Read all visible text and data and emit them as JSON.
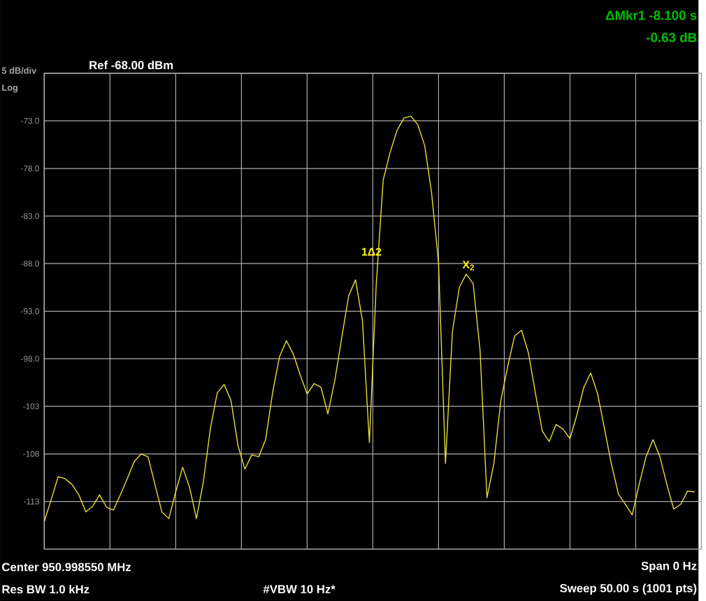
{
  "chart_data": {
    "type": "line",
    "categories": [
      null,
      null,
      null,
      null,
      null,
      null,
      null,
      null,
      null,
      null,
      null,
      null,
      null,
      null,
      null,
      null,
      null,
      null,
      null,
      null,
      null,
      null,
      null,
      null,
      null,
      null,
      null,
      null,
      null,
      null,
      null,
      null,
      null,
      null,
      null,
      null,
      null,
      null,
      null,
      null,
      null,
      null,
      null,
      null,
      null,
      null,
      null,
      null,
      null,
      null,
      null,
      null,
      null,
      null,
      null,
      null,
      null,
      null,
      null,
      null,
      null,
      null,
      null,
      null,
      null,
      null,
      null,
      null,
      null,
      null,
      null,
      null,
      null,
      null,
      null,
      null,
      null,
      null,
      null,
      null,
      null,
      null,
      null,
      null,
      null,
      null,
      null,
      null,
      null,
      null,
      null,
      null,
      null,
      null,
      null
    ],
    "series": [
      {
        "color": "#e8e03a",
        "values": [
          -115.1,
          -112.8,
          -110.4,
          -110.6,
          -111.2,
          -112.3,
          -114.1,
          -113.5,
          -112.3,
          -113.6,
          -113.9,
          -112.3,
          -110.6,
          -108.8,
          -108.0,
          -108.3,
          -111.2,
          -114.1,
          -114.8,
          -112.0,
          -109.4,
          -111.5,
          -114.8,
          -110.9,
          -105.4,
          -101.6,
          -100.7,
          -102.4,
          -107.1,
          -109.6,
          -108.1,
          -108.3,
          -106.5,
          -101.6,
          -97.8,
          -96.1,
          -97.5,
          -99.7,
          -101.7,
          -100.6,
          -101.0,
          -103.8,
          -100.3,
          -95.8,
          -91.4,
          -89.7,
          -94.0,
          -106.8,
          -90.1,
          -79.2,
          -76.3,
          -74.0,
          -72.7,
          -72.5,
          -73.4,
          -75.6,
          -80.6,
          -87.9,
          -109.0,
          -95.2,
          -90.5,
          -89.1,
          -90.1,
          -97.1,
          -112.6,
          -109.0,
          -102.4,
          -98.8,
          -95.6,
          -95.0,
          -97.4,
          -101.6,
          -105.6,
          -106.7,
          -104.9,
          -105.4,
          -106.4,
          -103.9,
          -101.0,
          -99.5,
          -101.7,
          -105.4,
          -109.1,
          -112.2,
          -113.3,
          -114.4,
          -111.2,
          -108.3,
          -106.5,
          -108.3,
          -111.2,
          -113.8,
          -113.3,
          -111.9,
          -112.0
        ]
      }
    ],
    "ylim": [
      -118,
      -68
    ],
    "yticks": [
      {
        "value": -73,
        "label": "-73.0"
      },
      {
        "value": -78,
        "label": "-78.0"
      },
      {
        "value": -83,
        "label": "-83.0"
      },
      {
        "value": -88,
        "label": "-88.0"
      },
      {
        "value": -93,
        "label": "-93.0"
      },
      {
        "value": -98,
        "label": "-98.0"
      },
      {
        "value": -103,
        "label": "-103"
      },
      {
        "value": -108,
        "label": "-108"
      },
      {
        "value": -113,
        "label": "-113"
      }
    ],
    "grid": true,
    "marker": "none",
    "annotations": [
      "5 dB/div",
      "Log",
      "Ref -68.00 dBm",
      "ΔMkr1 -8.100 s",
      "-0.63 dB",
      "Center 950.998550 MHz",
      "Res BW 1.0 kHz",
      "#VBW 10 Hz*",
      "Span 0 Hz",
      "Sweep 50.00 s (1001 pts)",
      "1Δ2",
      "X$_{2}$"
    ]
  }
}
